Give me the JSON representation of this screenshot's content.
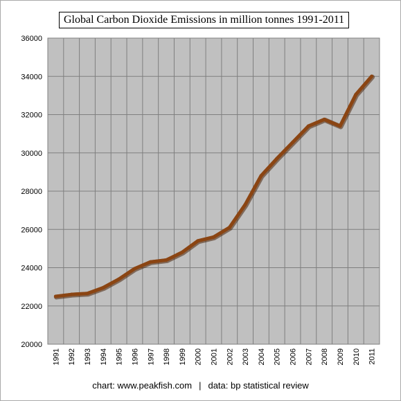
{
  "title": "Global Carbon Dioxide Emissions in million tonnes 1991-2011",
  "footer": {
    "chart_credit": "chart: www.peakfish.com",
    "separator": "|",
    "data_credit": "data: bp statistical review"
  },
  "colors": {
    "line": "#8b4513",
    "plot_background": "#c0c0c0",
    "gridlines": "#7f7f7f"
  },
  "chart_data": {
    "type": "line",
    "title": "Global Carbon Dioxide Emissions in million tonnes 1991-2011",
    "xlabel": "",
    "ylabel": "",
    "ylim": [
      20000,
      36000
    ],
    "y_ticks": [
      20000,
      22000,
      24000,
      26000,
      28000,
      30000,
      32000,
      34000,
      36000
    ],
    "grid": true,
    "legend": "none",
    "categories": [
      "1991",
      "1992",
      "1993",
      "1994",
      "1995",
      "1996",
      "1997",
      "1998",
      "1999",
      "2000",
      "2001",
      "2002",
      "2003",
      "2004",
      "2005",
      "2006",
      "2007",
      "2008",
      "2009",
      "2010",
      "2011"
    ],
    "series": [
      {
        "values": [
          22500,
          22600,
          22650,
          22950,
          23400,
          23950,
          24300,
          24400,
          24800,
          25400,
          25600,
          26100,
          27300,
          28800,
          29700,
          30550,
          31400,
          31750,
          31400,
          33050,
          34000
        ]
      }
    ]
  }
}
